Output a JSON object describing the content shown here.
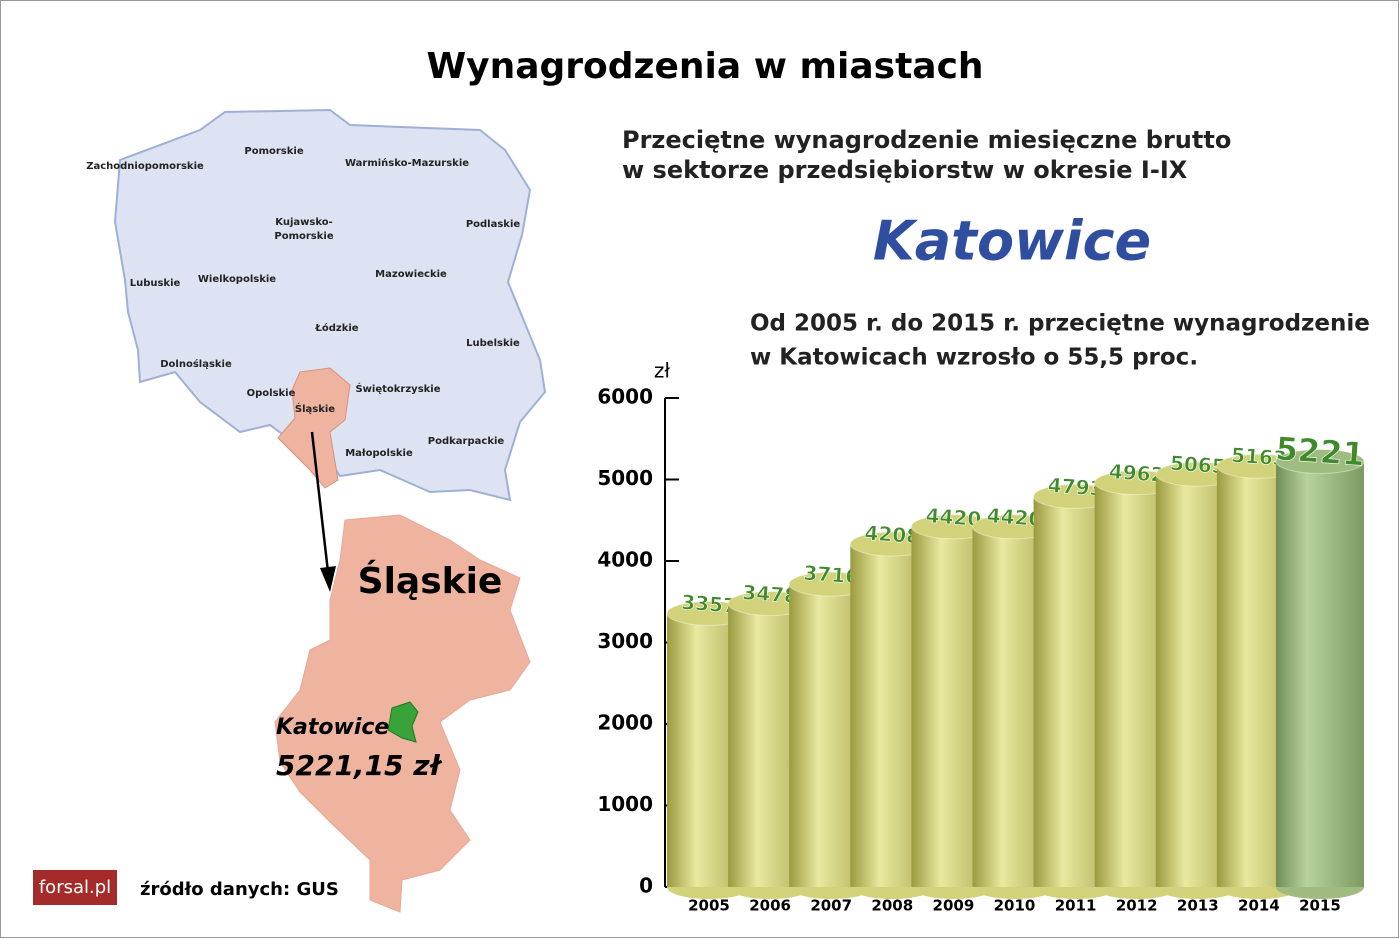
{
  "title": "Wynagrodzenia w miastach",
  "subtitle": [
    "Przeciętne wynagrodzenie miesięczne brutto",
    "w sektorze przedsiębiorstw w okresie I-IX"
  ],
  "city": "Katowice",
  "description": [
    "Od 2005 r. do 2015 r. przeciętne wynagrodzenie",
    "w Katowicach wzrosło o 55,5 proc."
  ],
  "map": {
    "regions": [
      "Zachodniopomorskie",
      "Pomorskie",
      "Warmińsko-Mazurskie",
      "Kujawsko-",
      "Pomorskie",
      "Podlaskie",
      "Lubuskie",
      "Wielkopolskie",
      "Mazowieckie",
      "Łódzkie",
      "Lubelskie",
      "Dolnośląskie",
      "Opolskie",
      "Śląskie",
      "Świętokrzyskie",
      "Podkarpackie",
      "Małopolskie"
    ],
    "region_title": "Śląskie",
    "city": "Katowice",
    "city_value": "5221,15 zł"
  },
  "source": "źródło danych: GUS",
  "logo": "forsal.pl",
  "chart_data": {
    "type": "bar",
    "y_label": "zł",
    "categories": [
      "2005",
      "2006",
      "2007",
      "2008",
      "2009",
      "2010",
      "2011",
      "2012",
      "2013",
      "2014",
      "2015"
    ],
    "values": [
      3357,
      3478,
      3716,
      4208,
      4420,
      4420,
      4793,
      4962,
      5065,
      5163,
      5221
    ],
    "colors": [
      "#d2d27a",
      "#d2d27a",
      "#d2d27a",
      "#d2d27a",
      "#d2d27a",
      "#d2d27a",
      "#d2d27a",
      "#d2d27a",
      "#d2d27a",
      "#d2d27a",
      "#9fbb80"
    ],
    "ylim": [
      0,
      6000
    ],
    "yticks": [
      0,
      1000,
      2000,
      3000,
      4000,
      5000,
      6000
    ]
  }
}
